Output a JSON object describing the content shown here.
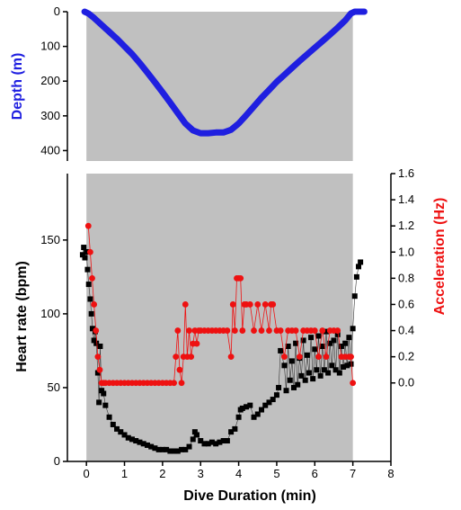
{
  "chart_data": [
    {
      "type": "line",
      "panel": "top",
      "ylabel": "Depth (m)",
      "ylabel_color": "#1f1fe0",
      "xlim": [
        -0.5,
        8
      ],
      "ylim": [
        0,
        430
      ],
      "y_inverted": true,
      "yticks": [
        0,
        100,
        200,
        300,
        400
      ],
      "background": "#c0c0c0",
      "shaded_x_range": [
        0,
        7
      ],
      "grid": false,
      "series": [
        {
          "color": "#1f1fe0",
          "x": [
            -0.05,
            0.05,
            0.2,
            0.4,
            0.6,
            0.8,
            1.0,
            1.2,
            1.4,
            1.6,
            1.8,
            2.0,
            2.2,
            2.4,
            2.6,
            2.8,
            3.0,
            3.2,
            3.4,
            3.6,
            3.8,
            4.0,
            4.2,
            4.4,
            4.6,
            4.8,
            5.0,
            5.2,
            5.4,
            5.6,
            5.8,
            6.0,
            6.2,
            6.4,
            6.6,
            6.8,
            6.95,
            7.05,
            7.3
          ],
          "y": [
            0,
            5,
            18,
            38,
            58,
            78,
            100,
            122,
            148,
            175,
            203,
            232,
            262,
            292,
            322,
            342,
            350,
            350,
            348,
            348,
            340,
            322,
            298,
            273,
            248,
            225,
            202,
            182,
            162,
            142,
            123,
            104,
            85,
            66,
            46,
            25,
            5,
            0,
            0
          ]
        }
      ]
    },
    {
      "type": "scatter",
      "panel": "bottom",
      "xlabel": "Dive Duration (min)",
      "ylabel": "Heart rate (bpm)",
      "ylabel_color": "#000000",
      "y2label": "Acceleration (Hz)",
      "y2label_color": "#ee1111",
      "xlim": [
        -0.5,
        8
      ],
      "xticks": [
        0,
        1,
        2,
        3,
        4,
        5,
        6,
        7,
        8
      ],
      "ylim": [
        0,
        195
      ],
      "yticks": [
        0,
        50,
        100,
        150
      ],
      "y2ticks": [
        0.0,
        0.2,
        0.4,
        0.6,
        0.8,
        1.0,
        1.2,
        1.4,
        1.6
      ],
      "background": "#c0c0c0",
      "shaded_x_range": [
        0,
        7
      ],
      "grid": false,
      "series": [
        {
          "axis": "left",
          "marker": "square",
          "color": "#000000",
          "x": [
            -0.1,
            -0.07,
            -0.04,
            0.0,
            0.03,
            0.06,
            0.1,
            0.13,
            0.16,
            0.2,
            0.23,
            0.26,
            0.3,
            0.33,
            0.36,
            0.4,
            0.45,
            0.5,
            0.6,
            0.7,
            0.8,
            0.9,
            1.0,
            1.1,
            1.2,
            1.3,
            1.4,
            1.5,
            1.6,
            1.7,
            1.8,
            1.9,
            2.0,
            2.1,
            2.2,
            2.3,
            2.4,
            2.5,
            2.6,
            2.7,
            2.8,
            2.85,
            2.9,
            3.0,
            3.1,
            3.2,
            3.3,
            3.4,
            3.5,
            3.6,
            3.7,
            3.8,
            3.9,
            4.0,
            4.05,
            4.1,
            4.2,
            4.3,
            4.4,
            4.5,
            4.6,
            4.7,
            4.8,
            4.9,
            5.0,
            5.05,
            5.1,
            5.2,
            5.25,
            5.3,
            5.35,
            5.4,
            5.45,
            5.5,
            5.55,
            5.6,
            5.65,
            5.7,
            5.75,
            5.8,
            5.85,
            5.9,
            5.95,
            6.0,
            6.05,
            6.1,
            6.15,
            6.2,
            6.25,
            6.3,
            6.35,
            6.4,
            6.45,
            6.5,
            6.55,
            6.6,
            6.65,
            6.7,
            6.75,
            6.8,
            6.85,
            6.9,
            6.95,
            7.0,
            7.05,
            7.1,
            7.15,
            7.2
          ],
          "y": [
            140,
            145,
            138,
            142,
            130,
            120,
            110,
            100,
            90,
            82,
            88,
            80,
            60,
            40,
            78,
            48,
            46,
            38,
            30,
            25,
            22,
            20,
            18,
            16,
            15,
            14,
            13,
            12,
            11,
            10,
            9,
            8,
            8,
            8,
            7,
            7,
            7,
            8,
            8,
            10,
            15,
            20,
            18,
            14,
            12,
            12,
            13,
            12,
            13,
            14,
            14,
            20,
            22,
            30,
            35,
            36,
            37,
            38,
            30,
            32,
            35,
            38,
            40,
            42,
            45,
            50,
            75,
            65,
            48,
            78,
            55,
            68,
            50,
            80,
            52,
            70,
            58,
            82,
            55,
            72,
            60,
            84,
            56,
            76,
            62,
            85,
            58,
            78,
            62,
            88,
            60,
            80,
            65,
            82,
            62,
            86,
            60,
            78,
            64,
            80,
            65,
            84,
            66,
            90,
            112,
            125,
            132,
            135
          ]
        },
        {
          "axis": "right",
          "marker": "circle",
          "color": "#ee1111",
          "x": [
            0.05,
            0.1,
            0.15,
            0.2,
            0.25,
            0.3,
            0.35,
            0.4,
            0.45,
            0.5,
            0.6,
            0.7,
            0.8,
            0.9,
            1.0,
            1.1,
            1.2,
            1.3,
            1.4,
            1.5,
            1.6,
            1.7,
            1.8,
            1.9,
            2.0,
            2.1,
            2.2,
            2.3,
            2.35,
            2.4,
            2.45,
            2.5,
            2.55,
            2.6,
            2.65,
            2.7,
            2.75,
            2.8,
            2.85,
            2.9,
            2.95,
            3.0,
            3.1,
            3.2,
            3.3,
            3.4,
            3.5,
            3.6,
            3.7,
            3.8,
            3.85,
            3.9,
            3.95,
            4.0,
            4.05,
            4.1,
            4.15,
            4.2,
            4.3,
            4.4,
            4.5,
            4.6,
            4.7,
            4.8,
            4.85,
            4.9,
            5.0,
            5.1,
            5.2,
            5.3,
            5.4,
            5.5,
            5.6,
            5.7,
            5.8,
            5.9,
            6.0,
            6.1,
            6.2,
            6.3,
            6.4,
            6.5,
            6.6,
            6.7,
            6.8,
            6.9,
            6.95,
            7.0
          ],
          "y": [
            1.2,
            1.0,
            0.8,
            0.6,
            0.4,
            0.2,
            0.1,
            0.0,
            0.0,
            0.0,
            0.0,
            0.0,
            0.0,
            0.0,
            0.0,
            0.0,
            0.0,
            0.0,
            0.0,
            0.0,
            0.0,
            0.0,
            0.0,
            0.0,
            0.0,
            0.0,
            0.0,
            0.0,
            0.2,
            0.4,
            0.1,
            0.0,
            0.2,
            0.6,
            0.2,
            0.4,
            0.2,
            0.3,
            0.4,
            0.3,
            0.4,
            0.4,
            0.4,
            0.4,
            0.4,
            0.4,
            0.4,
            0.4,
            0.4,
            0.2,
            0.6,
            0.4,
            0.8,
            0.8,
            0.8,
            0.4,
            0.6,
            0.6,
            0.6,
            0.4,
            0.6,
            0.4,
            0.6,
            0.4,
            0.6,
            0.6,
            0.4,
            0.4,
            0.2,
            0.4,
            0.4,
            0.4,
            0.2,
            0.4,
            0.4,
            0.4,
            0.4,
            0.2,
            0.4,
            0.2,
            0.4,
            0.4,
            0.4,
            0.2,
            0.2,
            0.2,
            0.2,
            0.0
          ]
        }
      ]
    }
  ]
}
